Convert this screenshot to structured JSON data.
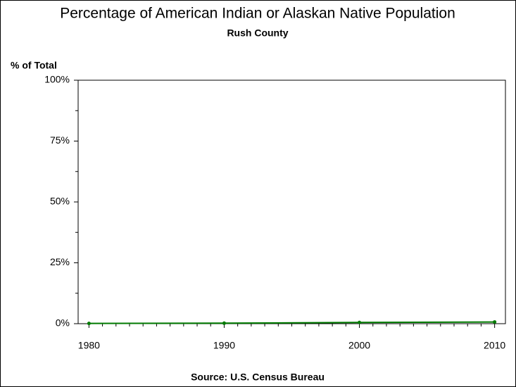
{
  "chart_data": {
    "type": "line",
    "title": "Percentage of American Indian or Alaskan Native Population",
    "subtitle": "Rush County",
    "y_label": "% of Total",
    "source": "Source: U.S. Census Bureau",
    "x": [
      1980,
      1990,
      2000,
      2010
    ],
    "series": [
      {
        "name": "Rush County",
        "color": "#007a00",
        "values": [
          0.1,
          0.2,
          0.5,
          0.7
        ]
      }
    ],
    "xlim": [
      1979.2,
      2010.8
    ],
    "xticks": [
      1980,
      1990,
      2000,
      2010
    ],
    "ylim": [
      0,
      100
    ],
    "yticks": [
      {
        "value": 0,
        "label": "0%"
      },
      {
        "value": 25,
        "label": "25%"
      },
      {
        "value": 50,
        "label": "50%"
      },
      {
        "value": 75,
        "label": "75%"
      },
      {
        "value": 100,
        "label": "100%"
      }
    ]
  }
}
